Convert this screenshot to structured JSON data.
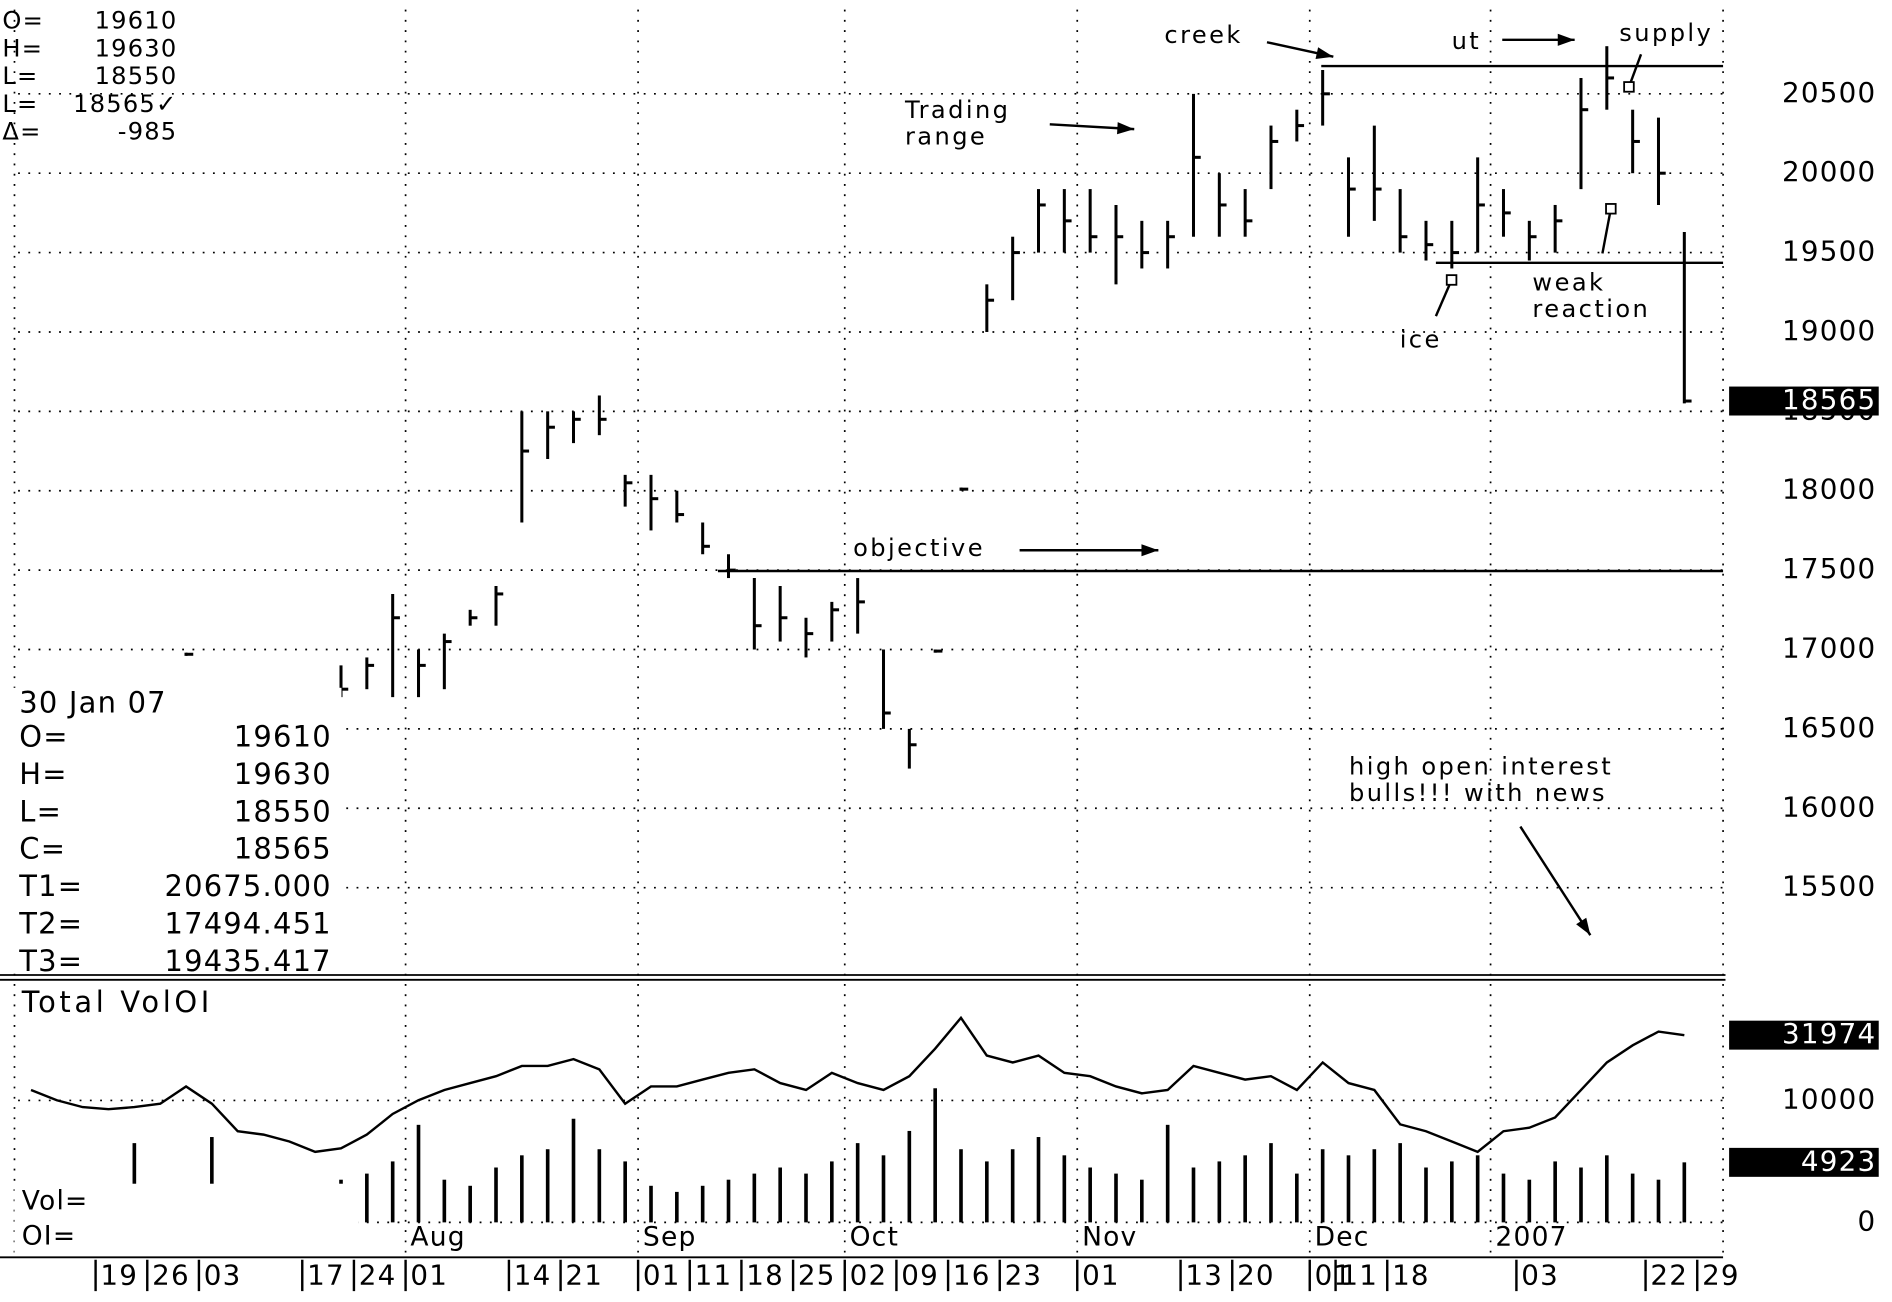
{
  "chart_data": {
    "type": "ohlc",
    "categories": [
      null,
      null,
      null,
      "19",
      null,
      "26",
      null,
      "03",
      null,
      null,
      null,
      "17",
      null,
      "24",
      null,
      "01",
      null,
      null,
      null,
      "14",
      null,
      "21",
      null,
      null,
      "01",
      null,
      "11",
      null,
      "18",
      null,
      "25",
      null,
      "02",
      null,
      "09",
      null,
      "16",
      null,
      "23",
      null,
      null,
      "01",
      null,
      null,
      null,
      "13",
      null,
      "20",
      null,
      null,
      "01",
      "11",
      null,
      "18",
      null,
      null,
      null,
      null,
      "03",
      null,
      null,
      null,
      null,
      "22",
      null,
      "29"
    ],
    "month_labels": [
      null,
      null,
      null,
      null,
      null,
      null,
      null,
      null,
      null,
      null,
      null,
      null,
      null,
      null,
      null,
      "Aug",
      null,
      null,
      null,
      null,
      null,
      null,
      null,
      null,
      "Sep",
      null,
      null,
      null,
      null,
      null,
      null,
      null,
      "Oct",
      null,
      null,
      null,
      null,
      null,
      null,
      null,
      null,
      "Nov",
      null,
      null,
      null,
      null,
      null,
      null,
      null,
      null,
      "Dec",
      null,
      null,
      null,
      null,
      null,
      null,
      "2007",
      null,
      null,
      null,
      null,
      null,
      null,
      null,
      null
    ],
    "high": [
      null,
      null,
      null,
      null,
      null,
      null,
      16980,
      null,
      null,
      null,
      null,
      null,
      16900,
      16950,
      17350,
      17000,
      17100,
      17250,
      17400,
      18500,
      18500,
      18500,
      18600,
      18100,
      18100,
      18000,
      17800,
      17600,
      17450,
      17400,
      17200,
      17300,
      17450,
      17000,
      16500,
      17000,
      18020,
      19300,
      19600,
      19900,
      19900,
      19900,
      19800,
      19700,
      19700,
      20500,
      20000,
      19900,
      20300,
      20400,
      20650,
      20100,
      20300,
      19900,
      19700,
      19700,
      20100,
      19900,
      19700,
      19800,
      20600,
      20800,
      20400,
      20350,
      19630,
      null
    ],
    "low": [
      null,
      null,
      null,
      null,
      null,
      null,
      16960,
      null,
      null,
      null,
      null,
      null,
      16700,
      16750,
      16700,
      16700,
      16750,
      17150,
      17150,
      17800,
      18200,
      18300,
      18350,
      17900,
      17750,
      17800,
      17600,
      17450,
      17000,
      17050,
      16950,
      17050,
      17100,
      16500,
      16250,
      16980,
      18000,
      19000,
      19200,
      19500,
      19500,
      19500,
      19300,
      19400,
      19400,
      19600,
      19600,
      19600,
      19900,
      20200,
      20300,
      19600,
      19700,
      19500,
      19450,
      19400,
      19500,
      19600,
      19450,
      19500,
      19900,
      20400,
      20000,
      19800,
      18550,
      null
    ],
    "close": [
      null,
      null,
      null,
      null,
      null,
      null,
      16970,
      null,
      null,
      null,
      null,
      null,
      16750,
      16900,
      17200,
      16900,
      17050,
      17200,
      17350,
      18250,
      18400,
      18450,
      18450,
      18050,
      17950,
      17850,
      17650,
      17500,
      17150,
      17200,
      17100,
      17250,
      17300,
      16600,
      16400,
      16990,
      18010,
      19200,
      19500,
      19800,
      19700,
      19600,
      19600,
      19500,
      19600,
      20100,
      19800,
      19700,
      20200,
      20300,
      20500,
      19900,
      19900,
      19600,
      19550,
      19500,
      19800,
      19750,
      19600,
      19700,
      20400,
      20600,
      20200,
      20000,
      18565,
      null
    ],
    "ylim": [
      14950,
      21030
    ],
    "yticks": [
      15500,
      16000,
      16500,
      17000,
      17500,
      18000,
      18500,
      19000,
      19500,
      20000,
      20500
    ],
    "grid": true,
    "quote": [
      {
        "label": "O=",
        "value": 19610
      },
      {
        "label": "H=",
        "value": 19630
      },
      {
        "label": "L=",
        "value": 18550
      },
      {
        "label": "L=",
        "value": 18565,
        "value_label": "18565✓"
      },
      {
        "label": "Δ=",
        "value": -985
      }
    ],
    "summary": {
      "date": "30 Jan 07",
      "rows": [
        {
          "label": "O=",
          "value": 19610
        },
        {
          "label": "H=",
          "value": 19630
        },
        {
          "label": "L=",
          "value": 18550
        },
        {
          "label": "C=",
          "value": 18565
        }
      ],
      "levels": [
        {
          "label": "T1=",
          "value": 20675,
          "value_label": "20675.000"
        },
        {
          "label": "T2=",
          "value": 17494.451,
          "value_label": "17494.451"
        },
        {
          "label": "T3=",
          "value": 19435.417,
          "value_label": "19435.417"
        }
      ]
    },
    "annotations": [
      {
        "lines": [
          "creek"
        ]
      },
      {
        "lines": [
          "ut"
        ]
      },
      {
        "lines": [
          "supply"
        ]
      },
      {
        "lines": [
          "Trading",
          "range"
        ]
      },
      {
        "lines": [
          "objective"
        ]
      },
      {
        "lines": [
          "weak",
          "reaction"
        ]
      },
      {
        "lines": [
          "ice"
        ]
      },
      {
        "lines": [
          "high open interest",
          "bulls!!! with news"
        ]
      }
    ],
    "lower_panel": {
      "title": "Total VolOI",
      "ylim": [
        -2670,
        19600
      ],
      "yticks": [
        0,
        10000
      ],
      "y2lim": [
        0,
        39500
      ],
      "series": [
        {
          "name": "Vol=",
          "type": "bar",
          "values": [
            2500,
            1800,
            3000,
            1200,
            6500,
            900,
            1500,
            7000,
            1000,
            800,
            1200,
            1500,
            3500,
            4000,
            5000,
            8000,
            3500,
            3000,
            4500,
            5500,
            6000,
            8500,
            6000,
            5000,
            3000,
            2500,
            3000,
            3500,
            4000,
            4500,
            4000,
            5000,
            6500,
            5500,
            7500,
            11000,
            6000,
            5000,
            6000,
            7000,
            5500,
            4500,
            4000,
            3500,
            8000,
            4500,
            5000,
            5500,
            6500,
            4000,
            6000,
            5500,
            6000,
            6500,
            4500,
            5000,
            5500,
            4000,
            3500,
            5000,
            4500,
            5500,
            4000,
            3500,
            4923,
            null
          ]
        },
        {
          "name": "OI=",
          "type": "line",
          "axis": "y2",
          "values": [
            24000,
            22500,
            21500,
            21200,
            21500,
            22000,
            24500,
            22000,
            18000,
            17500,
            16500,
            15000,
            15500,
            17500,
            20500,
            22500,
            24000,
            25000,
            26000,
            27500,
            27500,
            28500,
            27000,
            22000,
            24500,
            24500,
            25500,
            26500,
            27000,
            25000,
            24000,
            26500,
            25000,
            24000,
            26000,
            30000,
            34500,
            29000,
            28000,
            29000,
            26500,
            26000,
            24500,
            23500,
            24000,
            27500,
            26500,
            25500,
            26000,
            24000,
            28000,
            25000,
            24000,
            19000,
            18000,
            16500,
            15000,
            18000,
            18500,
            20000,
            24000,
            28000,
            30500,
            32500,
            31974,
            null
          ]
        }
      ]
    }
  }
}
